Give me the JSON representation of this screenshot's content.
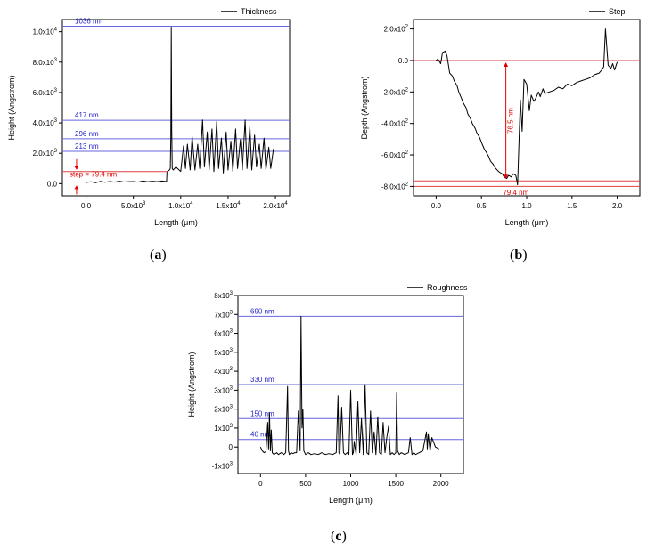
{
  "captions": {
    "a": {
      "open": "(",
      "letter": "a",
      "close": ")"
    },
    "b": {
      "open": "(",
      "letter": "b",
      "close": ")"
    },
    "c": {
      "open": "(",
      "letter": "c",
      "close": ")"
    }
  },
  "chart_data": [
    {
      "id": "a",
      "type": "line",
      "legend": "Thickness",
      "legend_position": "top-right",
      "xlabel_pre": "Length (",
      "xlabel_mu": "μ",
      "xlabel_post": "m)",
      "ylabel": "Height (Angstrom)",
      "xlim": [
        -2500,
        21500
      ],
      "ylim": [
        -800,
        10800
      ],
      "xticks": [
        {
          "v": 0,
          "m": "0.0",
          "e": ""
        },
        {
          "v": 5000,
          "m": "5.0x10",
          "e": "3"
        },
        {
          "v": 10000,
          "m": "1.0x10",
          "e": "4"
        },
        {
          "v": 15000,
          "m": "1.5x10",
          "e": "4"
        },
        {
          "v": 20000,
          "m": "2.0x10",
          "e": "4"
        }
      ],
      "yticks": [
        {
          "v": 0,
          "m": "0.0",
          "e": ""
        },
        {
          "v": 2000,
          "m": "2.0x10",
          "e": "3"
        },
        {
          "v": 4000,
          "m": "4.0x10",
          "e": "3"
        },
        {
          "v": 6000,
          "m": "6.0x10",
          "e": "3"
        },
        {
          "v": 8000,
          "m": "8.0x10",
          "e": "3"
        },
        {
          "v": 10000,
          "m": "1.0x10",
          "e": "4"
        }
      ],
      "hlines": [
        {
          "y": 10360,
          "label": "1036 nm"
        },
        {
          "y": 4170,
          "label": "417 nm"
        },
        {
          "y": 2960,
          "label": "296 nm"
        },
        {
          "y": 2130,
          "label": "213 nm"
        }
      ],
      "red_hlines": [],
      "step_annotation": {
        "text": "step = 79.4 nm",
        "x": -1000,
        "y_top": 794,
        "y_bottom": 0
      },
      "series": [
        {
          "x": [
            0,
            500,
            1000,
            1500,
            2000,
            2500,
            3000,
            3500,
            4000,
            4500,
            5000,
            5500,
            6000,
            6500,
            7000,
            7500,
            8000,
            8500,
            8550,
            8700,
            8800,
            8900,
            8950,
            9000,
            9050,
            9100,
            9200,
            9500,
            10000,
            10300,
            10500,
            10700,
            11000,
            11200,
            11500,
            11800,
            12000,
            12300,
            12500,
            12800,
            13000,
            13300,
            13500,
            13800,
            14000,
            14300,
            14500,
            14800,
            15000,
            15300,
            15500,
            15800,
            16000,
            16300,
            16500,
            16800,
            17000,
            17300,
            17500,
            17800,
            18000,
            18300,
            18500,
            18800,
            19000,
            19300,
            19500,
            19800
          ],
          "y": [
            80,
            120,
            60,
            150,
            90,
            140,
            100,
            160,
            110,
            130,
            140,
            100,
            180,
            120,
            160,
            130,
            170,
            140,
            800,
            850,
            900,
            1000,
            3000,
            10300,
            3500,
            1000,
            900,
            1100,
            800,
            2500,
            1000,
            2600,
            900,
            3100,
            900,
            2600,
            1000,
            4200,
            1100,
            3400,
            900,
            3600,
            800,
            4100,
            1000,
            3000,
            700,
            3400,
            900,
            2800,
            800,
            3600,
            1000,
            2900,
            900,
            4200,
            1000,
            3800,
            900,
            3200,
            1100,
            2600,
            1000,
            3000,
            900,
            2400,
            1000,
            2300
          ]
        }
      ]
    },
    {
      "id": "b",
      "type": "line",
      "legend": "Step",
      "legend_position": "top-right",
      "xlabel_pre": "Length (",
      "xlabel_mu": "μ",
      "xlabel_post": "m)",
      "ylabel": "Depth (Angstrom)",
      "xlim": [
        -0.25,
        2.25
      ],
      "ylim": [
        -860,
        260
      ],
      "xticks": [
        {
          "v": 0,
          "m": "0.0",
          "e": ""
        },
        {
          "v": 0.5,
          "m": "0.5",
          "e": ""
        },
        {
          "v": 1.0,
          "m": "1.0",
          "e": ""
        },
        {
          "v": 1.5,
          "m": "1.5",
          "e": ""
        },
        {
          "v": 2.0,
          "m": "2.0",
          "e": ""
        }
      ],
      "yticks": [
        {
          "v": 200,
          "m": "2.0x10",
          "e": "2"
        },
        {
          "v": 0,
          "m": "0.0",
          "e": ""
        },
        {
          "v": -200,
          "m": "-2.0x10",
          "e": "2"
        },
        {
          "v": -400,
          "m": "-4.0x10",
          "e": "2"
        },
        {
          "v": -600,
          "m": "-6.0x10",
          "e": "2"
        },
        {
          "v": -800,
          "m": "-8.0x10",
          "e": "2"
        }
      ],
      "hlines": [],
      "red_hlines": [
        {
          "y": 0
        },
        {
          "y": -765
        },
        {
          "y": -800
        }
      ],
      "depth_annotation": {
        "text": "76.5 nm",
        "x": 0.77,
        "y_top": 0,
        "y_bottom": -765
      },
      "width_annotation": {
        "text": "79.4 nm",
        "x": 0.88,
        "y": -820
      },
      "series": [
        {
          "x": [
            0,
            0.02,
            0.05,
            0.07,
            0.1,
            0.12,
            0.15,
            0.18,
            0.2,
            0.23,
            0.25,
            0.28,
            0.3,
            0.33,
            0.35,
            0.38,
            0.4,
            0.43,
            0.45,
            0.48,
            0.5,
            0.53,
            0.55,
            0.58,
            0.6,
            0.63,
            0.65,
            0.68,
            0.7,
            0.73,
            0.75,
            0.78,
            0.8,
            0.83,
            0.85,
            0.88,
            0.9,
            0.91,
            0.93,
            0.95,
            0.97,
            1.0,
            1.03,
            1.05,
            1.08,
            1.1,
            1.13,
            1.15,
            1.18,
            1.2,
            1.25,
            1.3,
            1.35,
            1.4,
            1.45,
            1.5,
            1.55,
            1.6,
            1.65,
            1.7,
            1.75,
            1.8,
            1.83,
            1.85,
            1.87,
            1.9,
            1.93,
            1.95,
            1.97,
            2.0
          ],
          "y": [
            0,
            10,
            -20,
            50,
            60,
            30,
            -80,
            -100,
            -130,
            -160,
            -200,
            -240,
            -270,
            -300,
            -340,
            -370,
            -400,
            -430,
            -460,
            -490,
            -520,
            -560,
            -580,
            -610,
            -640,
            -660,
            -680,
            -700,
            -710,
            -720,
            -740,
            -750,
            -730,
            -740,
            -720,
            -730,
            -790,
            -600,
            -250,
            -450,
            -120,
            -150,
            -320,
            -220,
            -260,
            -240,
            -200,
            -230,
            -180,
            -210,
            -200,
            -190,
            -170,
            -180,
            -150,
            -160,
            -140,
            -130,
            -120,
            -110,
            -90,
            -80,
            -60,
            -40,
            200,
            -30,
            -50,
            -20,
            -60,
            -10
          ]
        }
      ]
    },
    {
      "id": "c",
      "type": "line",
      "legend": "Roughness",
      "legend_position": "top-right",
      "xlabel_pre": "Length (",
      "xlabel_mu": "μ",
      "xlabel_post": "m)",
      "ylabel": "Height (Angstrom)",
      "xlim": [
        -250,
        2250
      ],
      "ylim": [
        -1400,
        8000
      ],
      "xticks": [
        {
          "v": 0,
          "m": "0",
          "e": ""
        },
        {
          "v": 500,
          "m": "500",
          "e": ""
        },
        {
          "v": 1000,
          "m": "1000",
          "e": ""
        },
        {
          "v": 1500,
          "m": "1500",
          "e": ""
        },
        {
          "v": 2000,
          "m": "2000",
          "e": ""
        }
      ],
      "yticks": [
        {
          "v": 8000,
          "m": "8x10",
          "e": "3"
        },
        {
          "v": 7000,
          "m": "7x10",
          "e": "3"
        },
        {
          "v": 6000,
          "m": "6x10",
          "e": "3"
        },
        {
          "v": 5000,
          "m": "5x10",
          "e": "3"
        },
        {
          "v": 4000,
          "m": "4x10",
          "e": "3"
        },
        {
          "v": 3000,
          "m": "3x10",
          "e": "3"
        },
        {
          "v": 2000,
          "m": "2x10",
          "e": "3"
        },
        {
          "v": 1000,
          "m": "1x10",
          "e": "3"
        },
        {
          "v": 0,
          "m": "0",
          "e": ""
        },
        {
          "v": -1000,
          "m": "-1x10",
          "e": "3"
        }
      ],
      "hlines": [
        {
          "y": 6900,
          "label": "690 nm"
        },
        {
          "y": 3300,
          "label": "330 nm"
        },
        {
          "y": 1500,
          "label": "150 nm"
        },
        {
          "y": 400,
          "label": "40 nm"
        }
      ],
      "red_hlines": [],
      "series": [
        {
          "x": [
            0,
            20,
            40,
            60,
            80,
            90,
            100,
            110,
            120,
            130,
            150,
            180,
            200,
            230,
            260,
            280,
            300,
            310,
            320,
            340,
            360,
            380,
            400,
            420,
            440,
            450,
            460,
            470,
            480,
            500,
            530,
            560,
            600,
            640,
            680,
            720,
            760,
            800,
            840,
            860,
            870,
            880,
            900,
            920,
            940,
            960,
            980,
            1000,
            1020,
            1030,
            1040,
            1060,
            1080,
            1100,
            1120,
            1140,
            1160,
            1180,
            1200,
            1220,
            1240,
            1260,
            1280,
            1300,
            1320,
            1340,
            1360,
            1380,
            1400,
            1420,
            1440,
            1460,
            1480,
            1500,
            1510,
            1520,
            1540,
            1560,
            1600,
            1640,
            1660,
            1680,
            1700,
            1720,
            1760,
            1800,
            1840,
            1850,
            1860,
            1880,
            1900,
            1940,
            1980
          ],
          "y": [
            0,
            -200,
            -300,
            -250,
            1300,
            -100,
            1800,
            -200,
            900,
            -300,
            -400,
            -300,
            -400,
            -300,
            -400,
            -300,
            3200,
            -200,
            -400,
            -300,
            -350,
            -300,
            -300,
            1900,
            -200,
            6900,
            1000,
            2000,
            -200,
            -400,
            -300,
            -400,
            -350,
            -400,
            -300,
            -400,
            -350,
            -400,
            -300,
            2700,
            -300,
            -400,
            2100,
            -300,
            -400,
            -300,
            -400,
            3000,
            -400,
            -300,
            300,
            -400,
            2400,
            -300,
            1500,
            -400,
            3300,
            -300,
            -400,
            1900,
            -300,
            800,
            -400,
            1600,
            -300,
            -400,
            1300,
            -300,
            500,
            1100,
            -400,
            -300,
            -400,
            -300,
            2900,
            -200,
            -400,
            -300,
            -400,
            -300,
            500,
            -400,
            -300,
            -400,
            -300,
            -200,
            800,
            -100,
            700,
            -200,
            500,
            0,
            -100
          ]
        }
      ]
    }
  ]
}
